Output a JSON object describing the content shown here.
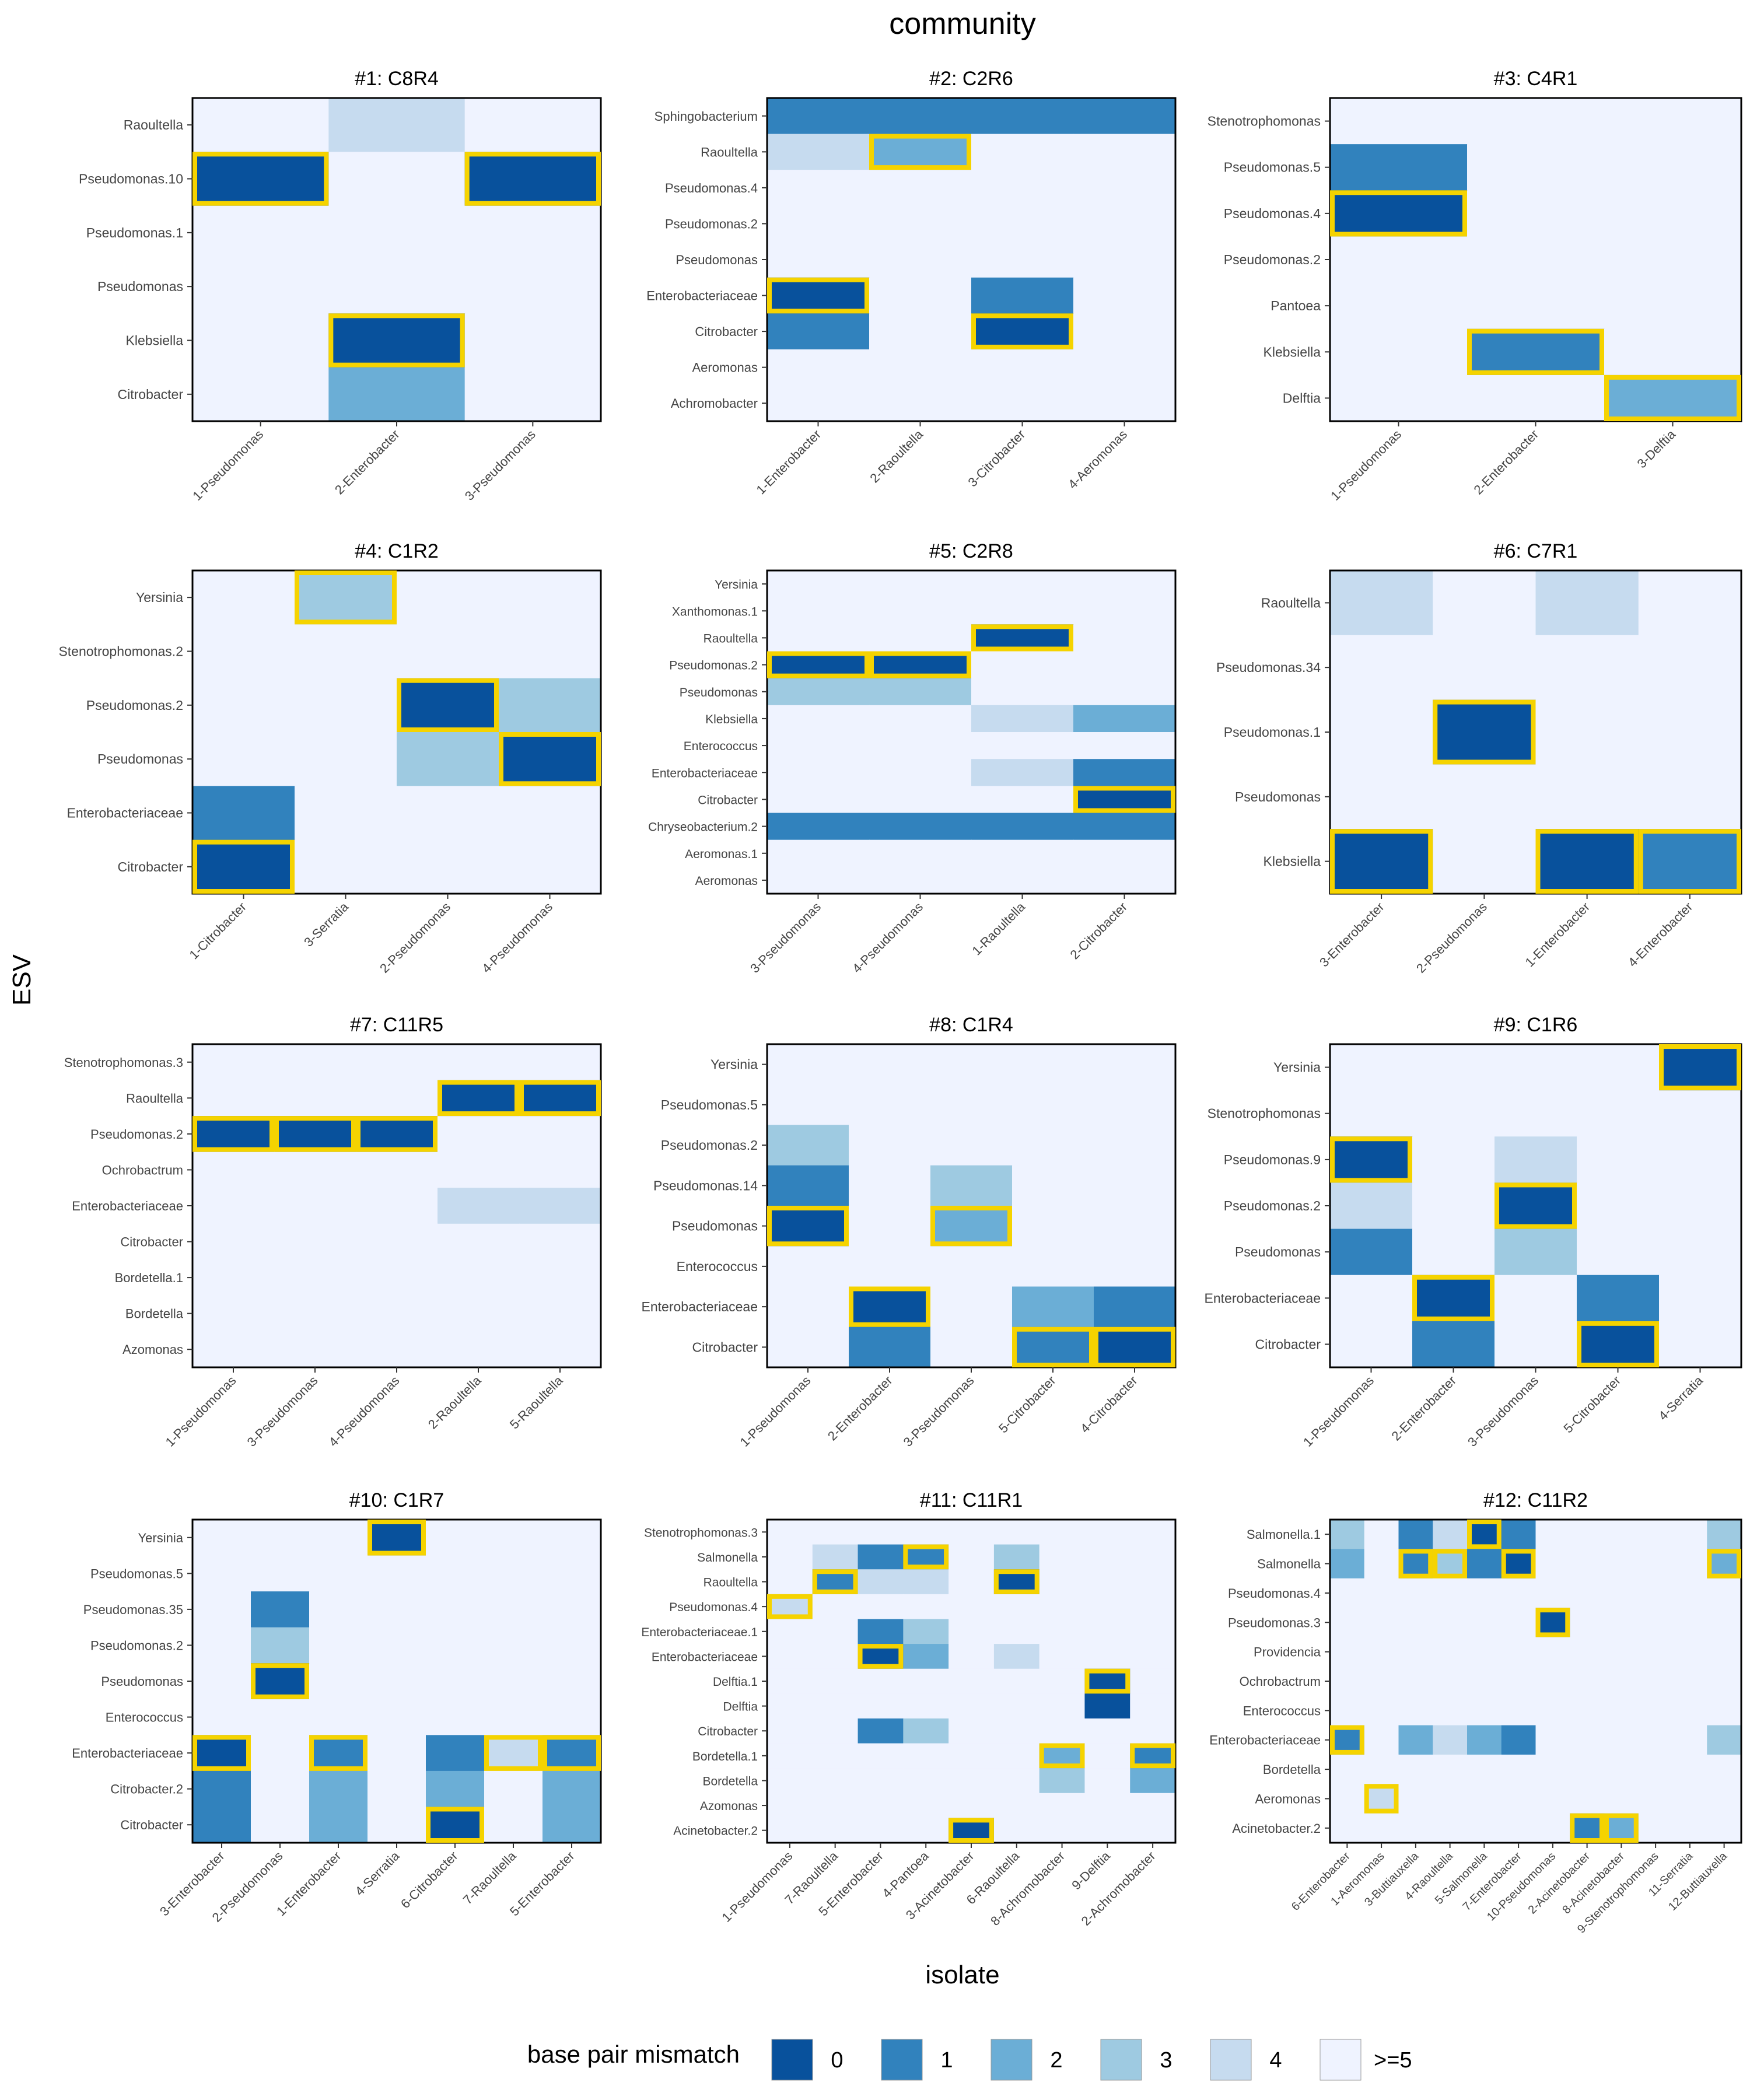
{
  "figure": {
    "title": "community",
    "xlabel": "isolate",
    "ylabel": "ESV",
    "legend_title": "base pair mismatch",
    "legend_labels": [
      "0",
      "1",
      "2",
      "3",
      "4",
      ">=5"
    ]
  },
  "colors": {
    "0": "#08519c",
    "1": "#3182bd",
    "2": "#6baed6",
    "3": "#9ecae1",
    "4": "#c6dbef",
    "5": "#eff3ff",
    "highlight": "#f5d300"
  },
  "chart_data": [
    {
      "type": "heatmap",
      "title": "#1: C8R4",
      "x": [
        "1-Pseudomonas",
        "2-Enterobacter",
        "3-Pseudomonas"
      ],
      "y": [
        "Raoultella",
        "Pseudomonas.10",
        "Pseudomonas.1",
        "Pseudomonas",
        "Klebsiella",
        "Citrobacter"
      ],
      "values": [
        [
          5,
          4,
          5
        ],
        [
          0,
          5,
          0
        ],
        [
          5,
          5,
          5
        ],
        [
          5,
          5,
          5
        ],
        [
          5,
          0,
          5
        ],
        [
          5,
          2,
          5
        ]
      ],
      "highlighted": [
        [
          1,
          0
        ],
        [
          1,
          2
        ],
        [
          4,
          1
        ]
      ]
    },
    {
      "type": "heatmap",
      "title": "#2: C2R6",
      "x": [
        "1-Enterobacter",
        "2-Raoultella",
        "3-Citrobacter",
        "4-Aeromonas"
      ],
      "y": [
        "Sphingobacterium",
        "Raoultella",
        "Pseudomonas.4",
        "Pseudomonas.2",
        "Pseudomonas",
        "Enterobacteriaceae",
        "Citrobacter",
        "Aeromonas",
        "Achromobacter"
      ],
      "values": [
        [
          1,
          1,
          1,
          1
        ],
        [
          4,
          2,
          5,
          5
        ],
        [
          5,
          5,
          5,
          5
        ],
        [
          5,
          5,
          5,
          5
        ],
        [
          5,
          5,
          5,
          5
        ],
        [
          0,
          5,
          1,
          5
        ],
        [
          1,
          5,
          0,
          5
        ],
        [
          5,
          5,
          5,
          5
        ],
        [
          5,
          5,
          5,
          5
        ]
      ],
      "highlighted": [
        [
          1,
          1
        ],
        [
          5,
          0
        ],
        [
          6,
          2
        ]
      ]
    },
    {
      "type": "heatmap",
      "title": "#3: C4R1",
      "x": [
        "1-Pseudomonas",
        "2-Enterobacter",
        "3-Delftia"
      ],
      "y": [
        "Stenotrophomonas",
        "Pseudomonas.5",
        "Pseudomonas.4",
        "Pseudomonas.2",
        "Pantoea",
        "Klebsiella",
        "Delftia"
      ],
      "values": [
        [
          5,
          5,
          5
        ],
        [
          1,
          5,
          5
        ],
        [
          0,
          5,
          5
        ],
        [
          5,
          5,
          5
        ],
        [
          5,
          5,
          5
        ],
        [
          5,
          1,
          5
        ],
        [
          5,
          5,
          2
        ]
      ],
      "highlighted": [
        [
          2,
          0
        ],
        [
          5,
          1
        ],
        [
          6,
          2
        ]
      ]
    },
    {
      "type": "heatmap",
      "title": "#4: C1R2",
      "x": [
        "1-Citrobacter",
        "3-Serratia",
        "2-Pseudomonas",
        "4-Pseudomonas"
      ],
      "y": [
        "Yersinia",
        "Stenotrophomonas.2",
        "Pseudomonas.2",
        "Pseudomonas",
        "Enterobacteriaceae",
        "Citrobacter"
      ],
      "values": [
        [
          5,
          3,
          5,
          5
        ],
        [
          5,
          5,
          5,
          5
        ],
        [
          5,
          5,
          0,
          3
        ],
        [
          5,
          5,
          3,
          0
        ],
        [
          1,
          5,
          5,
          5
        ],
        [
          0,
          5,
          5,
          5
        ]
      ],
      "highlighted": [
        [
          0,
          1
        ],
        [
          2,
          2
        ],
        [
          3,
          3
        ],
        [
          5,
          0
        ]
      ]
    },
    {
      "type": "heatmap",
      "title": "#5: C2R8",
      "x": [
        "3-Pseudomonas",
        "4-Pseudomonas",
        "1-Raoultella",
        "2-Citrobacter"
      ],
      "y": [
        "Yersinia",
        "Xanthomonas.1",
        "Raoultella",
        "Pseudomonas.2",
        "Pseudomonas",
        "Klebsiella",
        "Enterococcus",
        "Enterobacteriaceae",
        "Citrobacter",
        "Chryseobacterium.2",
        "Aeromonas.1",
        "Aeromonas"
      ],
      "values": [
        [
          5,
          5,
          5,
          5
        ],
        [
          5,
          5,
          5,
          5
        ],
        [
          5,
          5,
          0,
          5
        ],
        [
          0,
          0,
          5,
          5
        ],
        [
          3,
          3,
          5,
          5
        ],
        [
          5,
          5,
          4,
          2
        ],
        [
          5,
          5,
          5,
          5
        ],
        [
          5,
          5,
          4,
          1
        ],
        [
          5,
          5,
          5,
          0
        ],
        [
          1,
          1,
          1,
          1
        ],
        [
          5,
          5,
          5,
          5
        ],
        [
          5,
          5,
          5,
          5
        ]
      ],
      "highlighted": [
        [
          2,
          2
        ],
        [
          3,
          0
        ],
        [
          3,
          1
        ],
        [
          8,
          3
        ]
      ]
    },
    {
      "type": "heatmap",
      "title": "#6: C7R1",
      "x": [
        "3-Enterobacter",
        "2-Pseudomonas",
        "1-Enterobacter",
        "4-Enterobacter"
      ],
      "y": [
        "Raoultella",
        "Pseudomonas.34",
        "Pseudomonas.1",
        "Pseudomonas",
        "Klebsiella"
      ],
      "values": [
        [
          4,
          5,
          4,
          5
        ],
        [
          5,
          5,
          5,
          5
        ],
        [
          5,
          0,
          5,
          5
        ],
        [
          5,
          5,
          5,
          5
        ],
        [
          0,
          5,
          0,
          1
        ]
      ],
      "highlighted": [
        [
          2,
          1
        ],
        [
          4,
          0
        ],
        [
          4,
          2
        ],
        [
          4,
          3
        ]
      ]
    },
    {
      "type": "heatmap",
      "title": "#7: C11R5",
      "x": [
        "1-Pseudomonas",
        "3-Pseudomonas",
        "4-Pseudomonas",
        "2-Raoultella",
        "5-Raoultella"
      ],
      "y": [
        "Stenotrophomonas.3",
        "Raoultella",
        "Pseudomonas.2",
        "Ochrobactrum",
        "Enterobacteriaceae",
        "Citrobacter",
        "Bordetella.1",
        "Bordetella",
        "Azomonas"
      ],
      "values": [
        [
          5,
          5,
          5,
          5,
          5
        ],
        [
          5,
          5,
          5,
          0,
          0
        ],
        [
          0,
          0,
          0,
          5,
          5
        ],
        [
          5,
          5,
          5,
          5,
          5
        ],
        [
          5,
          5,
          5,
          4,
          4
        ],
        [
          5,
          5,
          5,
          5,
          5
        ],
        [
          5,
          5,
          5,
          5,
          5
        ],
        [
          5,
          5,
          5,
          5,
          5
        ],
        [
          5,
          5,
          5,
          5,
          5
        ]
      ],
      "highlighted": [
        [
          1,
          3
        ],
        [
          1,
          4
        ],
        [
          2,
          0
        ],
        [
          2,
          1
        ],
        [
          2,
          2
        ]
      ]
    },
    {
      "type": "heatmap",
      "title": "#8: C1R4",
      "x": [
        "1-Pseudomonas",
        "2-Enterobacter",
        "3-Pseudomonas",
        "5-Citrobacter",
        "4-Citrobacter"
      ],
      "y": [
        "Yersinia",
        "Pseudomonas.5",
        "Pseudomonas.2",
        "Pseudomonas.14",
        "Pseudomonas",
        "Enterococcus",
        "Enterobacteriaceae",
        "Citrobacter"
      ],
      "values": [
        [
          5,
          5,
          5,
          5,
          5
        ],
        [
          5,
          5,
          5,
          5,
          5
        ],
        [
          3,
          5,
          5,
          5,
          5
        ],
        [
          1,
          5,
          3,
          5,
          5
        ],
        [
          0,
          5,
          2,
          5,
          5
        ],
        [
          5,
          5,
          5,
          5,
          5
        ],
        [
          5,
          0,
          5,
          2,
          1
        ],
        [
          5,
          1,
          5,
          1,
          0
        ]
      ],
      "highlighted": [
        [
          4,
          0
        ],
        [
          4,
          2
        ],
        [
          6,
          1
        ],
        [
          7,
          3
        ],
        [
          7,
          4
        ]
      ]
    },
    {
      "type": "heatmap",
      "title": "#9: C1R6",
      "x": [
        "1-Pseudomonas",
        "2-Enterobacter",
        "3-Pseudomonas",
        "5-Citrobacter",
        "4-Serratia"
      ],
      "y": [
        "Yersinia",
        "Stenotrophomonas",
        "Pseudomonas.9",
        "Pseudomonas.2",
        "Pseudomonas",
        "Enterobacteriaceae",
        "Citrobacter"
      ],
      "values": [
        [
          5,
          5,
          5,
          5,
          0
        ],
        [
          5,
          5,
          5,
          5,
          5
        ],
        [
          0,
          5,
          4,
          5,
          5
        ],
        [
          4,
          5,
          0,
          5,
          5
        ],
        [
          1,
          5,
          3,
          5,
          5
        ],
        [
          5,
          0,
          5,
          1,
          5
        ],
        [
          5,
          1,
          5,
          0,
          5
        ]
      ],
      "highlighted": [
        [
          0,
          4
        ],
        [
          2,
          0
        ],
        [
          3,
          2
        ],
        [
          5,
          1
        ],
        [
          6,
          3
        ]
      ]
    },
    {
      "type": "heatmap",
      "title": "#10: C1R7",
      "x": [
        "3-Enterobacter",
        "2-Pseudomonas",
        "1-Enterobacter",
        "4-Serratia",
        "6-Citrobacter",
        "7-Raoultella",
        "5-Enterobacter"
      ],
      "y": [
        "Yersinia",
        "Pseudomonas.5",
        "Pseudomonas.35",
        "Pseudomonas.2",
        "Pseudomonas",
        "Enterococcus",
        "Enterobacteriaceae",
        "Citrobacter.2",
        "Citrobacter"
      ],
      "values": [
        [
          5,
          5,
          5,
          0,
          5,
          5,
          5
        ],
        [
          5,
          5,
          5,
          5,
          5,
          5,
          5
        ],
        [
          5,
          1,
          5,
          5,
          5,
          5,
          5
        ],
        [
          5,
          3,
          5,
          5,
          5,
          5,
          5
        ],
        [
          5,
          0,
          5,
          5,
          5,
          5,
          5
        ],
        [
          5,
          5,
          5,
          5,
          5,
          5,
          5
        ],
        [
          0,
          5,
          1,
          5,
          1,
          4,
          1
        ],
        [
          1,
          5,
          2,
          5,
          2,
          5,
          2
        ],
        [
          1,
          5,
          2,
          5,
          0,
          5,
          2
        ]
      ],
      "highlighted": [
        [
          0,
          3
        ],
        [
          4,
          1
        ],
        [
          6,
          0
        ],
        [
          6,
          2
        ],
        [
          6,
          5
        ],
        [
          6,
          6
        ],
        [
          8,
          4
        ]
      ]
    },
    {
      "type": "heatmap",
      "title": "#11: C11R1",
      "x": [
        "1-Pseudomonas",
        "7-Raoultella",
        "5-Enterobacter",
        "4-Pantoea",
        "3-Acinetobacter",
        "6-Raoultella",
        "8-Achromobacter",
        "9-Delftia",
        "2-Achromobacter"
      ],
      "y": [
        "Stenotrophomonas.3",
        "Salmonella",
        "Raoultella",
        "Pseudomonas.4",
        "Enterobacteriaceae.1",
        "Enterobacteriaceae",
        "Delftia.1",
        "Delftia",
        "Citrobacter",
        "Bordetella.1",
        "Bordetella",
        "Azomonas",
        "Acinetobacter.2"
      ],
      "values": [
        [
          5,
          5,
          5,
          5,
          5,
          5,
          5,
          5,
          5
        ],
        [
          5,
          4,
          1,
          1,
          5,
          3,
          5,
          5,
          5
        ],
        [
          5,
          1,
          4,
          4,
          5,
          0,
          5,
          5,
          5
        ],
        [
          4,
          5,
          5,
          5,
          5,
          5,
          5,
          5,
          5
        ],
        [
          5,
          5,
          1,
          3,
          5,
          5,
          5,
          5,
          5
        ],
        [
          5,
          5,
          0,
          2,
          5,
          4,
          5,
          5,
          5
        ],
        [
          5,
          5,
          5,
          5,
          5,
          5,
          5,
          0,
          5
        ],
        [
          5,
          5,
          5,
          5,
          5,
          5,
          5,
          0,
          5
        ],
        [
          5,
          5,
          1,
          3,
          5,
          5,
          5,
          5,
          5
        ],
        [
          5,
          5,
          5,
          5,
          5,
          5,
          2,
          5,
          1
        ],
        [
          5,
          5,
          5,
          5,
          5,
          5,
          3,
          5,
          2
        ],
        [
          5,
          5,
          5,
          5,
          5,
          5,
          5,
          5,
          5
        ],
        [
          5,
          5,
          5,
          5,
          0,
          5,
          5,
          5,
          5
        ]
      ],
      "highlighted": [
        [
          1,
          3
        ],
        [
          2,
          1
        ],
        [
          2,
          5
        ],
        [
          3,
          0
        ],
        [
          5,
          2
        ],
        [
          6,
          7
        ],
        [
          9,
          6
        ],
        [
          9,
          8
        ],
        [
          12,
          4
        ]
      ]
    },
    {
      "type": "heatmap",
      "title": "#12: C11R2",
      "x": [
        "6-Enterobacter",
        "1-Aeromonas",
        "3-Buttiauxella",
        "4-Raoultella",
        "5-Salmonella",
        "7-Enterobacter",
        "10-Pseudomonas",
        "2-Acinetobacter",
        "8-Acinetobacter",
        "9-Stenotrophomonas",
        "11-Serratia",
        "12-Buttiauxella"
      ],
      "y": [
        "Salmonella.1",
        "Salmonella",
        "Pseudomonas.4",
        "Pseudomonas.3",
        "Providencia",
        "Ochrobactrum",
        "Enterococcus",
        "Enterobacteriaceae",
        "Bordetella",
        "Aeromonas",
        "Acinetobacter.2"
      ],
      "values": [
        [
          3,
          5,
          1,
          4,
          0,
          1,
          5,
          5,
          5,
          5,
          5,
          3
        ],
        [
          2,
          5,
          1,
          3,
          1,
          0,
          5,
          5,
          5,
          5,
          5,
          2
        ],
        [
          5,
          5,
          5,
          5,
          5,
          5,
          5,
          5,
          5,
          5,
          5,
          5
        ],
        [
          5,
          5,
          5,
          5,
          5,
          5,
          0,
          5,
          5,
          5,
          5,
          5
        ],
        [
          5,
          5,
          5,
          5,
          5,
          5,
          5,
          5,
          5,
          5,
          5,
          5
        ],
        [
          5,
          5,
          5,
          5,
          5,
          5,
          5,
          5,
          5,
          5,
          5,
          5
        ],
        [
          5,
          5,
          5,
          5,
          5,
          5,
          5,
          5,
          5,
          5,
          5,
          5
        ],
        [
          1,
          5,
          2,
          4,
          2,
          1,
          5,
          5,
          5,
          5,
          5,
          3
        ],
        [
          5,
          5,
          5,
          5,
          5,
          5,
          5,
          5,
          5,
          5,
          5,
          5
        ],
        [
          5,
          4,
          5,
          5,
          5,
          5,
          5,
          5,
          5,
          5,
          5,
          5
        ],
        [
          5,
          5,
          5,
          5,
          5,
          5,
          5,
          1,
          2,
          5,
          5,
          5
        ]
      ],
      "highlighted": [
        [
          0,
          4
        ],
        [
          1,
          2
        ],
        [
          1,
          3
        ],
        [
          1,
          5
        ],
        [
          1,
          11
        ],
        [
          3,
          6
        ],
        [
          7,
          0
        ],
        [
          9,
          1
        ],
        [
          10,
          7
        ],
        [
          10,
          8
        ]
      ]
    }
  ]
}
